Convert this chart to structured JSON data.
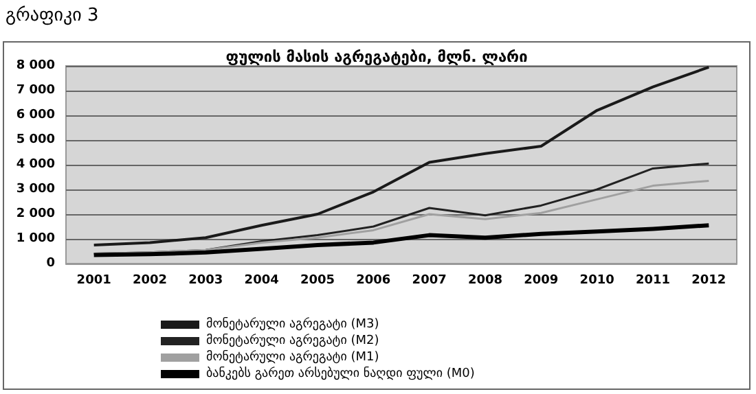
{
  "chart_data": {
    "type": "line",
    "title": "ფულის მასის აგრეგატები, მლნ. ლარი",
    "annotations": [
      "გრაფიკი 3"
    ],
    "categories": [
      "2001",
      "2002",
      "2003",
      "2004",
      "2005",
      "2006",
      "2007",
      "2008",
      "2009",
      "2010",
      "2011",
      "2012"
    ],
    "series": [
      {
        "name": "მონეტარული აგრეგატი (M3)",
        "color": "#1a1a1a",
        "values": [
          750,
          850,
          1050,
          1550,
          2000,
          2900,
          4100,
          4450,
          4750,
          6200,
          7150,
          7950
        ]
      },
      {
        "name": "მონეტარული აგრეგატი (M2)",
        "color": "#222222",
        "values": [
          400,
          450,
          550,
          900,
          1150,
          1500,
          2250,
          1950,
          2350,
          3000,
          3850,
          4050
        ]
      },
      {
        "name": "მონეტარული აგრეგატი (M1)",
        "color": "#a0a0a0",
        "values": [
          400,
          450,
          550,
          850,
          1050,
          1350,
          2000,
          1800,
          2050,
          2600,
          3150,
          3350
        ]
      },
      {
        "name": "ბანკებს გარეთ არსებული ნაღდი ფული (M0)",
        "color": "#000000",
        "values": [
          350,
          380,
          450,
          600,
          750,
          850,
          1150,
          1050,
          1200,
          1300,
          1400,
          1550
        ]
      }
    ],
    "ylim": [
      0,
      8000
    ],
    "yticks": [
      {
        "value": 0,
        "label": "0"
      },
      {
        "value": 1000,
        "label": "1 000"
      },
      {
        "value": 2000,
        "label": "2 000"
      },
      {
        "value": 3000,
        "label": "3 000"
      },
      {
        "value": 4000,
        "label": "4 000"
      },
      {
        "value": 5000,
        "label": "5 000"
      },
      {
        "value": 6000,
        "label": "6 000"
      },
      {
        "value": 7000,
        "label": "7 000"
      },
      {
        "value": 8000,
        "label": "8 000"
      }
    ],
    "grid": "y",
    "legend": "bottom",
    "marker": "none",
    "line_style": "solid"
  }
}
